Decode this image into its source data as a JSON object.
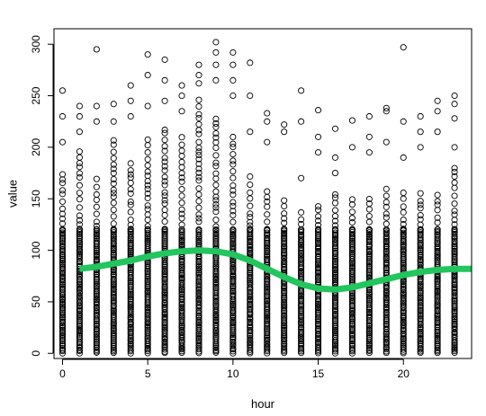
{
  "chart_data": {
    "type": "scatter",
    "title": "",
    "xlabel": "hour",
    "ylabel": "value",
    "xlim": [
      -0.5,
      24
    ],
    "ylim": [
      -5,
      315
    ],
    "x_ticks": [
      0,
      5,
      10,
      15,
      20
    ],
    "y_ticks": [
      0,
      50,
      100,
      150,
      200,
      250,
      300
    ],
    "frame": true,
    "grid": false,
    "colors": {
      "points": "#000000",
      "smooth": "#22c55e"
    },
    "points": {
      "marker": "open-circle",
      "hours": [
        0,
        1,
        2,
        3,
        4,
        5,
        6,
        7,
        8,
        9,
        10,
        11,
        12,
        13,
        14,
        15,
        16,
        17,
        18,
        19,
        20,
        21,
        22,
        23
      ],
      "dense_upper": [
        175,
        200,
        170,
        210,
        190,
        210,
        220,
        215,
        250,
        230,
        210,
        175,
        160,
        150,
        140,
        145,
        160,
        150,
        155,
        160,
        160,
        160,
        160,
        185
      ],
      "outliers": [
        {
          "x": 0,
          "y": 255
        },
        {
          "x": 0,
          "y": 230
        },
        {
          "x": 0,
          "y": 205
        },
        {
          "x": 1,
          "y": 240
        },
        {
          "x": 1,
          "y": 230
        },
        {
          "x": 1,
          "y": 215
        },
        {
          "x": 2,
          "y": 295
        },
        {
          "x": 2,
          "y": 240
        },
        {
          "x": 2,
          "y": 225
        },
        {
          "x": 3,
          "y": 242
        },
        {
          "x": 3,
          "y": 225
        },
        {
          "x": 4,
          "y": 260
        },
        {
          "x": 4,
          "y": 245
        },
        {
          "x": 4,
          "y": 230
        },
        {
          "x": 5,
          "y": 290
        },
        {
          "x": 5,
          "y": 270
        },
        {
          "x": 5,
          "y": 240
        },
        {
          "x": 6,
          "y": 285
        },
        {
          "x": 6,
          "y": 265
        },
        {
          "x": 6,
          "y": 245
        },
        {
          "x": 7,
          "y": 260
        },
        {
          "x": 7,
          "y": 250
        },
        {
          "x": 7,
          "y": 235
        },
        {
          "x": 8,
          "y": 280
        },
        {
          "x": 8,
          "y": 270
        },
        {
          "x": 8,
          "y": 262
        },
        {
          "x": 9,
          "y": 302
        },
        {
          "x": 9,
          "y": 292
        },
        {
          "x": 9,
          "y": 280
        },
        {
          "x": 9,
          "y": 265
        },
        {
          "x": 10,
          "y": 292
        },
        {
          "x": 10,
          "y": 280
        },
        {
          "x": 10,
          "y": 265
        },
        {
          "x": 10,
          "y": 250
        },
        {
          "x": 11,
          "y": 282
        },
        {
          "x": 11,
          "y": 250
        },
        {
          "x": 11,
          "y": 215
        },
        {
          "x": 12,
          "y": 233
        },
        {
          "x": 12,
          "y": 225
        },
        {
          "x": 12,
          "y": 205
        },
        {
          "x": 13,
          "y": 222
        },
        {
          "x": 13,
          "y": 215
        },
        {
          "x": 14,
          "y": 255
        },
        {
          "x": 14,
          "y": 225
        },
        {
          "x": 14,
          "y": 170
        },
        {
          "x": 15,
          "y": 236
        },
        {
          "x": 15,
          "y": 210
        },
        {
          "x": 15,
          "y": 195
        },
        {
          "x": 16,
          "y": 218
        },
        {
          "x": 16,
          "y": 190
        },
        {
          "x": 16,
          "y": 175
        },
        {
          "x": 17,
          "y": 226
        },
        {
          "x": 17,
          "y": 200
        },
        {
          "x": 18,
          "y": 230
        },
        {
          "x": 18,
          "y": 210
        },
        {
          "x": 18,
          "y": 195
        },
        {
          "x": 19,
          "y": 238
        },
        {
          "x": 19,
          "y": 235
        },
        {
          "x": 19,
          "y": 205
        },
        {
          "x": 20,
          "y": 297
        },
        {
          "x": 20,
          "y": 225
        },
        {
          "x": 20,
          "y": 190
        },
        {
          "x": 21,
          "y": 230
        },
        {
          "x": 21,
          "y": 215
        },
        {
          "x": 21,
          "y": 200
        },
        {
          "x": 22,
          "y": 245
        },
        {
          "x": 22,
          "y": 235
        },
        {
          "x": 22,
          "y": 215
        },
        {
          "x": 23,
          "y": 250
        },
        {
          "x": 23,
          "y": 242
        },
        {
          "x": 23,
          "y": 228
        },
        {
          "x": 23,
          "y": 200
        }
      ]
    },
    "smooth_line": {
      "x": [
        1,
        2,
        3,
        4,
        5,
        6,
        7,
        8,
        9,
        10,
        11,
        12,
        13,
        14,
        15,
        16,
        17,
        18,
        19,
        20,
        21,
        22,
        23,
        24
      ],
      "y": [
        82,
        84,
        87,
        90,
        94,
        97,
        99,
        100,
        99,
        96,
        90,
        82,
        74,
        67,
        63,
        62,
        64,
        68,
        72,
        76,
        79,
        81,
        82,
        82
      ]
    }
  }
}
